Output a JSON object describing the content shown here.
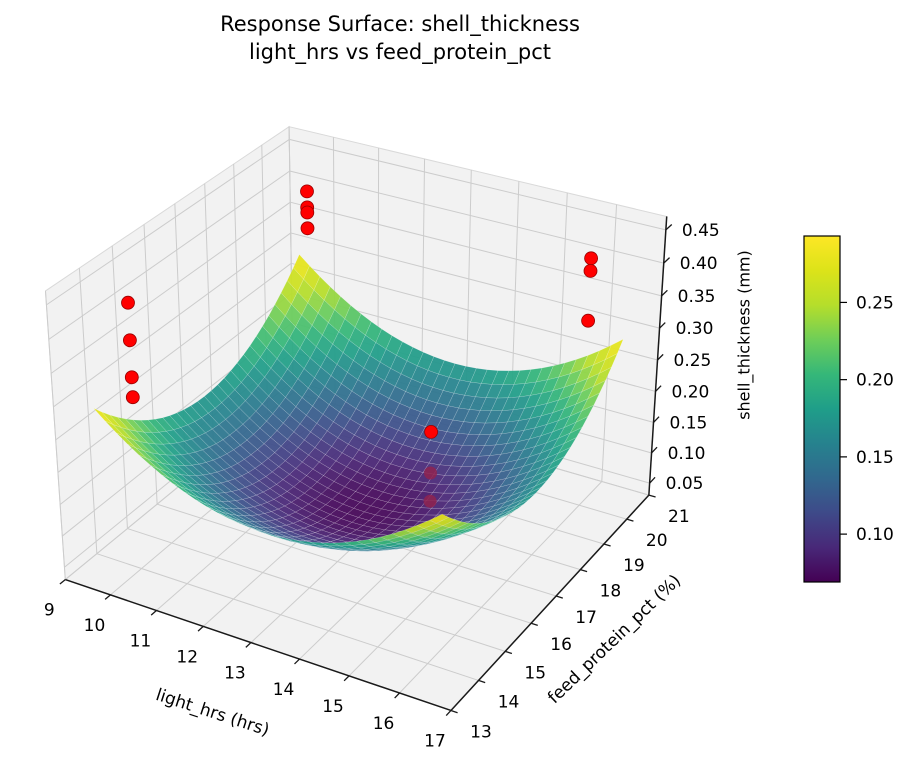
{
  "title": {
    "line1": "Response Surface: shell_thickness",
    "line2": "light_hrs vs feed_protein_pct"
  },
  "chart_data": {
    "type": "surface3d",
    "title": "Response Surface: shell_thickness\nlight_hrs vs feed_protein_pct",
    "axes": {
      "x": {
        "label": "light_hrs (hrs)",
        "range": [
          9,
          17
        ],
        "ticks": [
          9,
          10,
          11,
          12,
          13,
          14,
          15,
          16,
          17
        ],
        "tick_labels": [
          "9",
          "10",
          "11",
          "12",
          "13",
          "14",
          "15",
          "16",
          "17"
        ]
      },
      "y": {
        "label": "feed_protein_pct (%)",
        "range": [
          13,
          21
        ],
        "ticks": [
          13,
          14,
          15,
          16,
          17,
          18,
          19,
          20,
          21
        ],
        "tick_labels": [
          "13",
          "14",
          "15",
          "16",
          "17",
          "18",
          "19",
          "20",
          "21"
        ]
      },
      "z": {
        "label": "shell_thickness (mm)",
        "range": [
          0.03,
          0.47
        ],
        "ticks": [
          0.05,
          0.1,
          0.15,
          0.2,
          0.25,
          0.3,
          0.35,
          0.4,
          0.45
        ],
        "tick_labels": [
          "0.05",
          "0.10",
          "0.15",
          "0.20",
          "0.25",
          "0.30",
          "0.35",
          "0.40",
          "0.45"
        ]
      }
    },
    "view": {
      "elev": 30,
      "azim": -60,
      "proj_type": "persp"
    },
    "surface": {
      "formula": "z = z_min + coeff*((x-cx)^2 + (y-cy)^2)",
      "x_range": [
        9.5,
        16.5
      ],
      "y_range": [
        13.5,
        20.5
      ],
      "z_min": 0.07,
      "coeff": 0.00898,
      "center": [
        13,
        17
      ],
      "z_corner_max": 0.29,
      "resolution": 30,
      "colormap": "viridis",
      "color_range": [
        0.069,
        0.293
      ]
    },
    "scatter": {
      "marker": "circle",
      "radius": 6.5,
      "points": [
        {
          "x": 10,
          "y": 20,
          "z": 0.415
        },
        {
          "x": 10,
          "y": 20,
          "z": 0.39
        },
        {
          "x": 10,
          "y": 20,
          "z": 0.382
        },
        {
          "x": 10,
          "y": 20,
          "z": 0.357
        },
        {
          "x": 10,
          "y": 14,
          "z": 0.439
        },
        {
          "x": 10,
          "y": 14,
          "z": 0.384
        },
        {
          "x": 10,
          "y": 14,
          "z": 0.329
        },
        {
          "x": 10,
          "y": 14,
          "z": 0.299
        },
        {
          "x": 16,
          "y": 20,
          "z": 0.421
        },
        {
          "x": 16,
          "y": 20,
          "z": 0.402
        },
        {
          "x": 16,
          "y": 20,
          "z": 0.326
        },
        {
          "x": 16,
          "y": 14,
          "z": 0.377
        },
        {
          "x": 16,
          "y": 14,
          "z": 0.318,
          "behind_surface": true
        },
        {
          "x": 16,
          "y": 14,
          "z": 0.277,
          "behind_surface": true
        }
      ]
    },
    "colorbar": {
      "vmin": 0.069,
      "vmax": 0.293,
      "ticks": [
        0.1,
        0.15,
        0.2,
        0.25
      ],
      "tick_labels": [
        "0.10",
        "0.15",
        "0.20",
        "0.25"
      ]
    },
    "colors": {
      "pane": "#f2f2f2",
      "pane_edge": "#d9d9d9",
      "grid": "#cccccc",
      "axis": "#1a1a1a",
      "scatter": "#ff0000",
      "scatter_edge": "#990000",
      "scatter_dim": "#8f2350",
      "mesh_line": "rgba(255,255,255,0.30)",
      "text": "#000000"
    },
    "viridis_stops": [
      "#440154",
      "#482878",
      "#3e4a89",
      "#31688e",
      "#26828e",
      "#1f9e89",
      "#35b779",
      "#6ece58",
      "#b5de2b",
      "#dce319",
      "#fde725"
    ]
  }
}
